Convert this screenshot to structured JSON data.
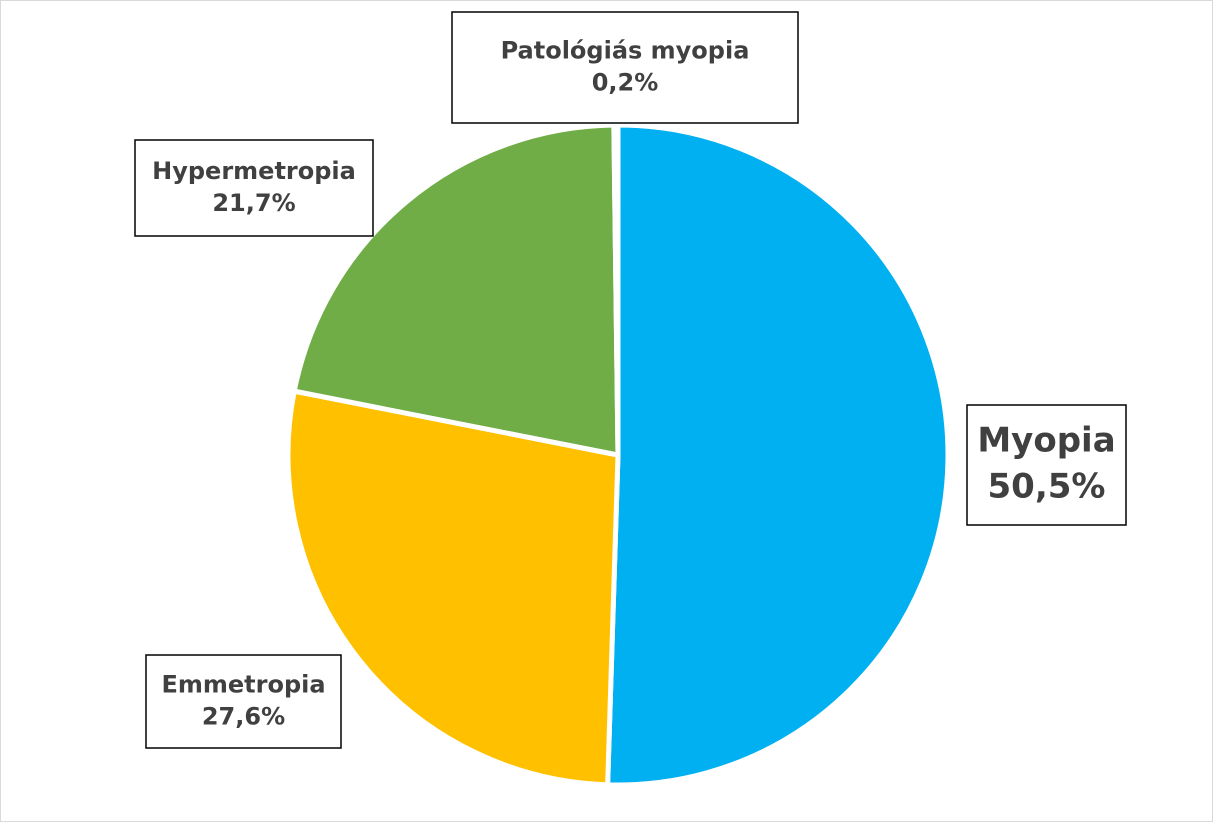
{
  "chart_data": {
    "type": "pie",
    "categories": [
      "Myopia",
      "Emmetropia",
      "Hypermetropia",
      "Patológiás myopia"
    ],
    "values": [
      50.5,
      27.6,
      21.7,
      0.2
    ],
    "value_labels": [
      "50,5%",
      "27,6%",
      "21,7%",
      "0,2%"
    ],
    "colors": [
      "#00b0f0",
      "#ffc000",
      "#70ad47",
      "#9dc3e6"
    ]
  }
}
